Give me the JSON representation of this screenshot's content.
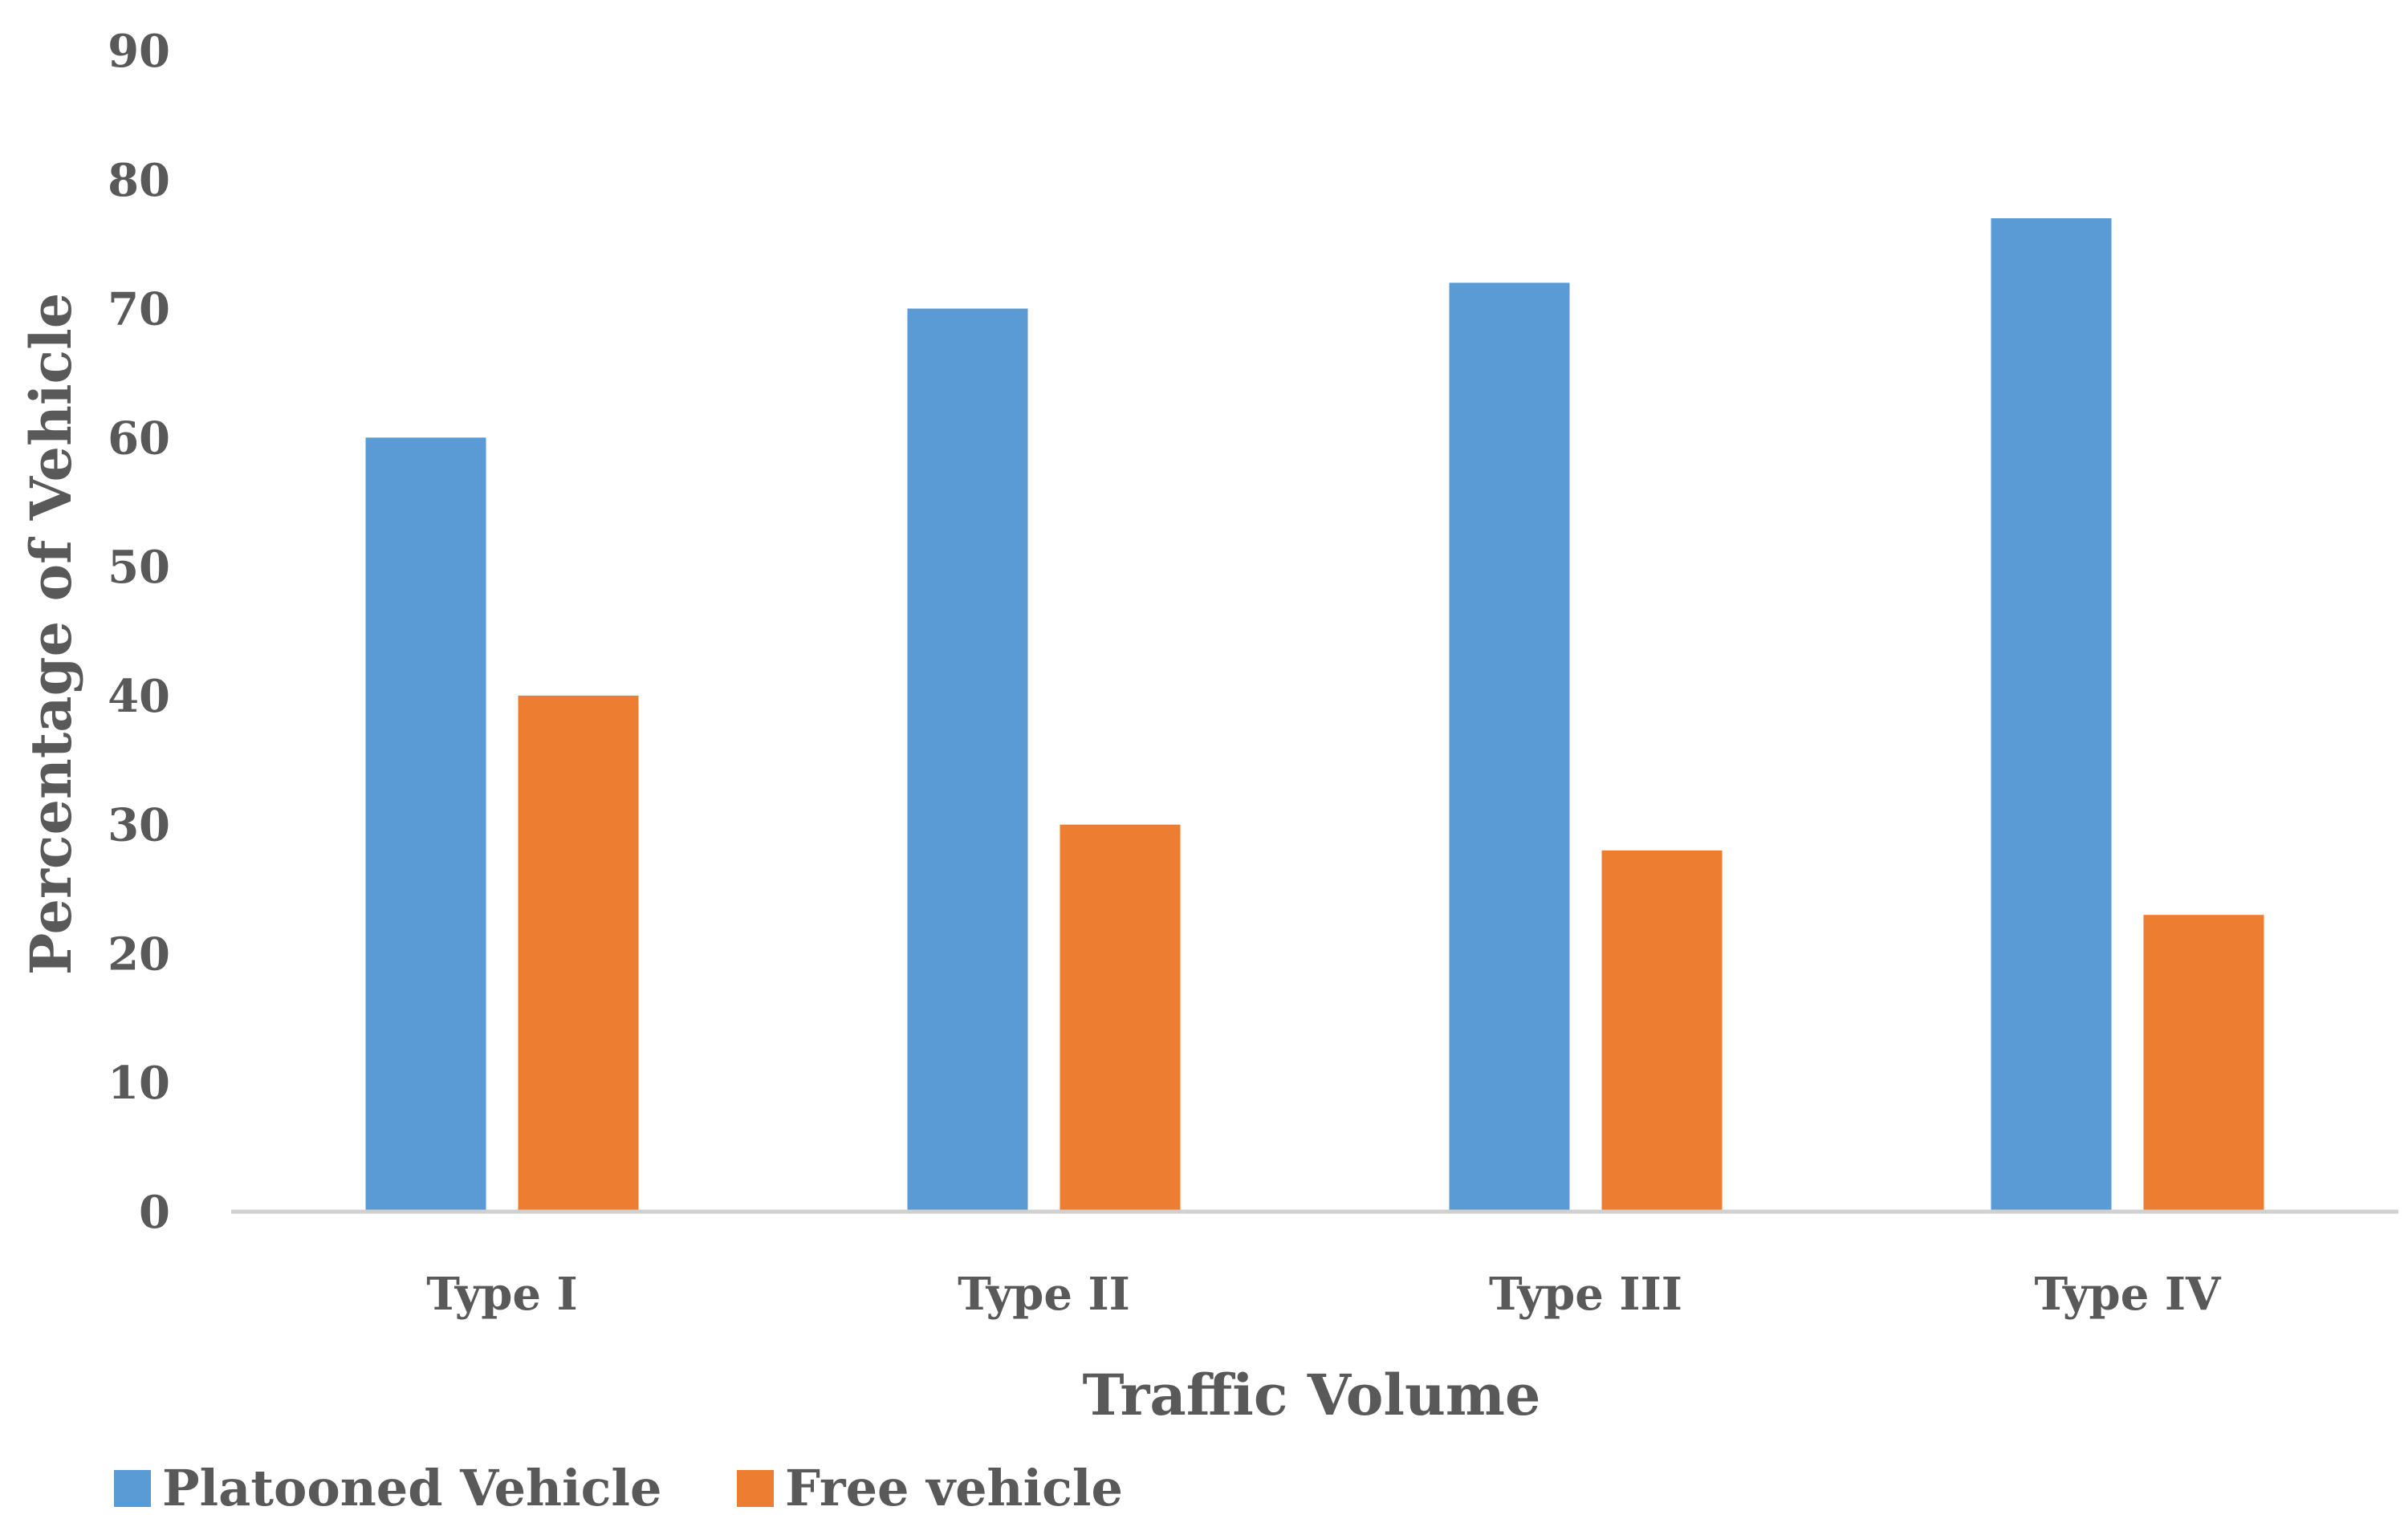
{
  "chart_data": {
    "type": "bar",
    "title": "",
    "xlabel": "Traffic Volume",
    "ylabel": "Percentage of Vehicle",
    "categories": [
      "Type I",
      "Type II",
      "Type III",
      "Type IV"
    ],
    "series": [
      {
        "name": "Platooned Vehicle",
        "color": "#5B9BD5",
        "values": [
          60,
          70,
          72,
          77
        ]
      },
      {
        "name": "Free vehicle",
        "color": "#ED7D31",
        "values": [
          40,
          30,
          28,
          23
        ]
      }
    ],
    "ylim": [
      0,
      90
    ],
    "yticks": [
      "0",
      "10",
      "20",
      "30",
      "40",
      "50",
      "60",
      "70",
      "80",
      "90"
    ],
    "grid": false,
    "legend": "bottom-left"
  }
}
